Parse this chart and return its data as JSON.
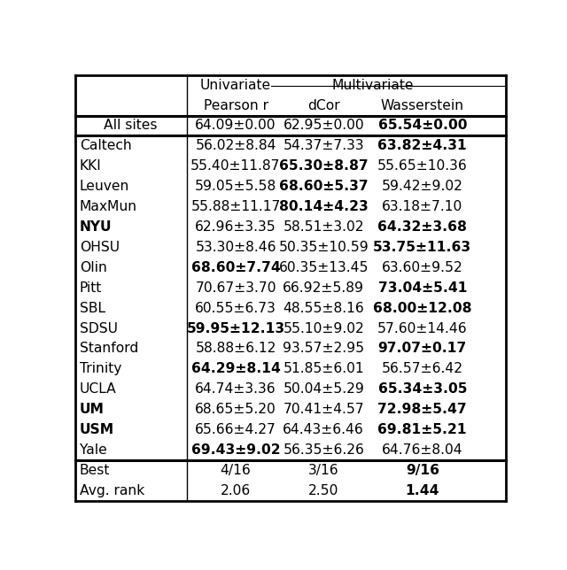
{
  "header_row1_uni": "Univariate",
  "header_row1_multi": "Multivariate",
  "header_row2": [
    "",
    "Pearson r",
    "dCor",
    "Wasserstein"
  ],
  "all_sites_row": [
    "All sites",
    "64.09±0.00",
    "62.95±0.00",
    "65.54±0.00"
  ],
  "all_sites_bold": [
    false,
    false,
    false,
    true
  ],
  "rows": [
    [
      "Caltech",
      "56.02±8.84",
      "54.37±7.33",
      "63.82±4.31"
    ],
    [
      "KKI",
      "55.40±11.87",
      "65.30±8.87",
      "55.65±10.36"
    ],
    [
      "Leuven",
      "59.05±5.58",
      "68.60±5.37",
      "59.42±9.02"
    ],
    [
      "MaxMun",
      "55.88±11.17",
      "80.14±4.23",
      "63.18±7.10"
    ],
    [
      "NYU",
      "62.96±3.35",
      "58.51±3.02",
      "64.32±3.68"
    ],
    [
      "OHSU",
      "53.30±8.46",
      "50.35±10.59",
      "53.75±11.63"
    ],
    [
      "Olin",
      "68.60±7.74",
      "60.35±13.45",
      "63.60±9.52"
    ],
    [
      "Pitt",
      "70.67±3.70",
      "66.92±5.89",
      "73.04±5.41"
    ],
    [
      "SBL",
      "60.55±6.73",
      "48.55±8.16",
      "68.00±12.08"
    ],
    [
      "SDSU",
      "59.95±12.13",
      "55.10±9.02",
      "57.60±14.46"
    ],
    [
      "Stanford",
      "58.88±6.12",
      "93.57±2.95",
      "97.07±0.17"
    ],
    [
      "Trinity",
      "64.29±8.14",
      "51.85±6.01",
      "56.57±6.42"
    ],
    [
      "UCLA",
      "64.74±3.36",
      "50.04±5.29",
      "65.34±3.05"
    ],
    [
      "UM",
      "68.65±5.20",
      "70.41±4.57",
      "72.98±5.47"
    ],
    [
      "USM",
      "65.66±4.27",
      "64.43±6.46",
      "69.81±5.21"
    ],
    [
      "Yale",
      "69.43±9.02",
      "56.35±6.26",
      "64.76±8.04"
    ]
  ],
  "bold_cells": [
    [
      false,
      false,
      false,
      true
    ],
    [
      false,
      false,
      true,
      false
    ],
    [
      false,
      false,
      true,
      false
    ],
    [
      false,
      false,
      true,
      false
    ],
    [
      true,
      false,
      false,
      true
    ],
    [
      false,
      false,
      false,
      true
    ],
    [
      false,
      true,
      false,
      false
    ],
    [
      false,
      false,
      false,
      true
    ],
    [
      false,
      false,
      false,
      true
    ],
    [
      false,
      true,
      false,
      false
    ],
    [
      false,
      false,
      false,
      true
    ],
    [
      false,
      true,
      false,
      false
    ],
    [
      false,
      false,
      false,
      true
    ],
    [
      true,
      false,
      false,
      true
    ],
    [
      true,
      false,
      false,
      true
    ],
    [
      false,
      true,
      false,
      false
    ]
  ],
  "bottom_rows": [
    [
      "Best",
      "4/16",
      "3/16",
      "9/16"
    ],
    [
      "Avg. rank",
      "2.06",
      "2.50",
      "1.44"
    ]
  ],
  "bottom_bold": [
    [
      false,
      false,
      false,
      true
    ],
    [
      false,
      false,
      false,
      true
    ]
  ],
  "background_color": "#ffffff",
  "text_color": "#000000",
  "fontsize": 11.2
}
